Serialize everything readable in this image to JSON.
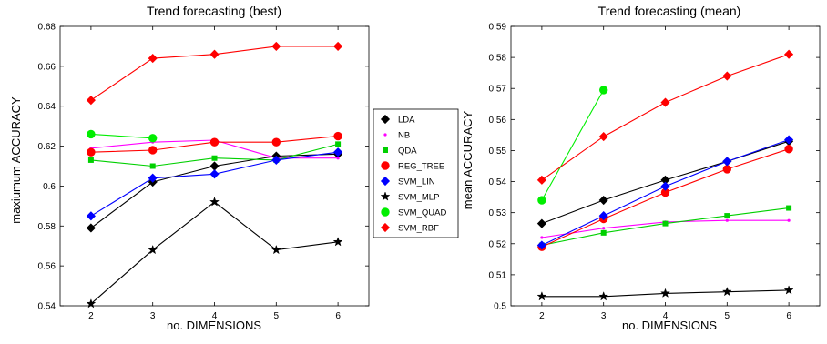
{
  "chart_data": [
    {
      "type": "line",
      "title": "Trend forecasting (best)",
      "xlabel": "no. DIMENSIONS",
      "ylabel": "maxiumum ACCURACY",
      "x": [
        2,
        3,
        4,
        5,
        6
      ],
      "xlim": [
        1.5,
        6.5
      ],
      "ylim": [
        0.54,
        0.68
      ],
      "xticks": [
        "2",
        "3",
        "4",
        "5",
        "6"
      ],
      "yticks": [
        "0.54",
        "0.56",
        "0.58",
        "0.6",
        "0.62",
        "0.64",
        "0.66",
        "0.68"
      ],
      "grid": false,
      "series": [
        {
          "name": "LDA",
          "color": "#000000",
          "marker": "diamond",
          "values": [
            0.579,
            0.602,
            0.61,
            0.615,
            0.616
          ]
        },
        {
          "name": "NB",
          "color": "#ff00ff",
          "marker": "point",
          "values": [
            0.619,
            0.622,
            0.623,
            0.614,
            0.614
          ]
        },
        {
          "name": "QDA",
          "color": "#00d000",
          "marker": "square",
          "values": [
            0.613,
            0.61,
            0.614,
            0.613,
            0.621
          ]
        },
        {
          "name": "REG_TREE",
          "color": "#ff0000",
          "marker": "circle",
          "values": [
            0.617,
            0.618,
            0.622,
            0.622,
            0.625
          ]
        },
        {
          "name": "SVM_LIN",
          "color": "#0000ff",
          "marker": "diamond",
          "values": [
            0.585,
            0.604,
            0.606,
            0.613,
            0.617
          ]
        },
        {
          "name": "SVM_MLP",
          "color": "#000000",
          "marker": "star",
          "values": [
            0.541,
            0.568,
            0.592,
            0.568,
            0.572
          ]
        },
        {
          "name": "SVM_QUAD",
          "color": "#00ee00",
          "marker": "circle",
          "values": [
            0.626,
            0.624,
            null,
            null,
            null
          ]
        },
        {
          "name": "SVM_RBF",
          "color": "#ff0000",
          "marker": "diamond",
          "values": [
            0.643,
            0.664,
            0.666,
            0.67,
            0.67
          ]
        }
      ]
    },
    {
      "type": "line",
      "title": "Trend forecasting (mean)",
      "xlabel": "no. DIMENSIONS",
      "ylabel": "mean ACCURACY",
      "x": [
        2,
        3,
        4,
        5,
        6
      ],
      "xlim": [
        1.5,
        6.5
      ],
      "ylim": [
        0.5,
        0.59
      ],
      "xticks": [
        "2",
        "3",
        "4",
        "5",
        "6"
      ],
      "yticks": [
        "0.5",
        "0.51",
        "0.52",
        "0.53",
        "0.54",
        "0.55",
        "0.56",
        "0.57",
        "0.58",
        "0.59"
      ],
      "grid": false,
      "series": [
        {
          "name": "LDA",
          "color": "#000000",
          "marker": "diamond",
          "values": [
            0.5265,
            0.534,
            0.5405,
            0.5465,
            0.553
          ]
        },
        {
          "name": "NB",
          "color": "#ff00ff",
          "marker": "point",
          "values": [
            0.522,
            0.525,
            0.527,
            0.5275,
            0.5275
          ]
        },
        {
          "name": "QDA",
          "color": "#00d000",
          "marker": "square",
          "values": [
            0.5195,
            0.5235,
            0.5265,
            0.529,
            0.5315
          ]
        },
        {
          "name": "REG_TREE",
          "color": "#ff0000",
          "marker": "circle",
          "values": [
            0.519,
            0.528,
            0.5365,
            0.544,
            0.5505
          ]
        },
        {
          "name": "SVM_LIN",
          "color": "#0000ff",
          "marker": "diamond",
          "values": [
            0.5195,
            0.529,
            0.5385,
            0.5465,
            0.5535
          ]
        },
        {
          "name": "SVM_MLP",
          "color": "#000000",
          "marker": "star",
          "values": [
            0.503,
            0.503,
            0.504,
            0.5045,
            0.505
          ]
        },
        {
          "name": "SVM_QUAD",
          "color": "#00ee00",
          "marker": "circle",
          "values": [
            0.534,
            0.5695,
            null,
            null,
            null
          ]
        },
        {
          "name": "SVM_RBF",
          "color": "#ff0000",
          "marker": "diamond",
          "values": [
            0.5405,
            0.5545,
            0.5655,
            0.574,
            0.581
          ]
        }
      ]
    }
  ],
  "legend": {
    "placement": "center",
    "entries": [
      "LDA",
      "NB",
      "QDA",
      "REG_TREE",
      "SVM_LIN",
      "SVM_MLP",
      "SVM_QUAD",
      "SVM_RBF"
    ]
  }
}
